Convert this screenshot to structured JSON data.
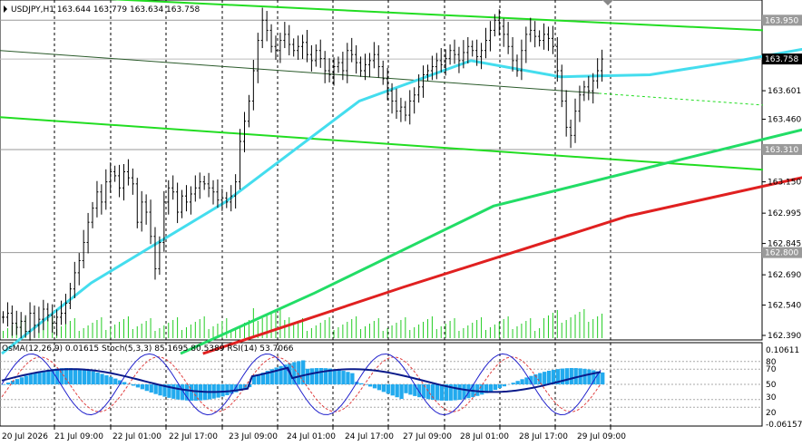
{
  "chart_data": {
    "type": "line",
    "title": "USDJPY,H1  163.644 163.779 163.634 163.758",
    "x_labels": [
      "20 Jul 2026",
      "21 Jul 09:00",
      "22 Jul 01:00",
      "22 Jul 17:00",
      "23 Jul 09:00",
      "24 Jul 01:00",
      "24 Jul 17:00",
      "27 Jul 09:00",
      "28 Jul 01:00",
      "28 Jul 17:00",
      "29 Jul 09:00"
    ],
    "price_axis": {
      "ylim": [
        162.39,
        164.05
      ],
      "ticks": [
        "163.950",
        "163.758",
        "163.601",
        "163.460",
        "163.310",
        "163.150",
        "162.995",
        "162.845",
        "162.800",
        "162.690",
        "162.540",
        "162.390"
      ],
      "boxed": [
        {
          "value": 163.95,
          "label": "163.950",
          "style": "grey"
        },
        {
          "value": 163.758,
          "label": "163.758",
          "style": "black"
        },
        {
          "value": 163.31,
          "label": "163.310",
          "style": "grey"
        },
        {
          "value": 162.8,
          "label": "162.800",
          "style": "grey"
        }
      ]
    },
    "price_series": {
      "close": [
        162.48,
        162.5,
        162.45,
        162.43,
        162.46,
        162.41,
        162.5,
        162.44,
        162.47,
        162.52,
        162.49,
        162.45,
        162.48,
        162.5,
        162.55,
        162.62,
        162.7,
        162.76,
        162.85,
        162.95,
        163.02,
        163.1,
        163.05,
        163.15,
        163.2,
        163.18,
        163.12,
        163.2,
        163.17,
        163.14,
        162.95,
        163.05,
        163.0,
        162.88,
        162.72,
        162.85,
        163.05,
        163.12,
        163.1,
        163.0,
        163.08,
        163.05,
        163.09,
        163.12,
        163.15,
        163.14,
        163.12,
        163.1,
        163.06,
        163.07,
        163.05,
        163.08,
        163.15,
        163.35,
        163.45,
        163.55,
        163.7,
        163.85,
        163.95,
        163.9,
        163.82,
        163.8,
        163.85,
        163.88,
        163.83,
        163.8,
        163.82,
        163.84,
        163.78,
        163.75,
        163.8,
        163.76,
        163.7,
        163.68,
        163.72,
        163.74,
        163.7,
        163.8,
        163.78,
        163.74,
        163.7,
        163.73,
        163.75,
        163.78,
        163.72,
        163.66,
        163.6,
        163.55,
        163.5,
        163.52,
        163.48,
        163.55,
        163.58,
        163.62,
        163.68,
        163.7,
        163.72,
        163.75,
        163.73,
        163.76,
        163.8,
        163.78,
        163.75,
        163.79,
        163.82,
        163.8,
        163.77,
        163.8,
        163.85,
        163.9,
        163.95,
        163.92,
        163.88,
        163.82,
        163.75,
        163.7,
        163.8,
        163.88,
        163.9,
        163.87,
        163.85,
        163.88,
        163.86,
        163.82,
        163.7,
        163.55,
        163.42,
        163.38,
        163.5,
        163.58,
        163.62,
        163.6,
        163.65,
        163.7,
        163.758
      ],
      "ema_cyan": [
        [
          0,
          162.3
        ],
        [
          20,
          162.65
        ],
        [
          50,
          163.05
        ],
        [
          80,
          163.55
        ],
        [
          105,
          163.75
        ],
        [
          125,
          163.67
        ],
        [
          145,
          163.68
        ],
        [
          165,
          163.75
        ],
        [
          185,
          163.83
        ],
        [
          200,
          163.78
        ],
        [
          230,
          163.7
        ]
      ],
      "ema_green": [
        [
          40,
          162.3
        ],
        [
          70,
          162.6
        ],
        [
          110,
          163.03
        ],
        [
          150,
          163.25
        ],
        [
          185,
          163.44
        ],
        [
          210,
          163.45
        ],
        [
          230,
          163.48
        ]
      ],
      "ema_red": [
        [
          45,
          162.3
        ],
        [
          90,
          162.63
        ],
        [
          140,
          162.98
        ],
        [
          185,
          163.2
        ],
        [
          230,
          163.31
        ]
      ],
      "channel_top": {
        "from": [
          0,
          164.08
        ],
        "to": [
          290,
          163.9
        ]
      },
      "channel_mid": {
        "from": [
          0,
          163.8
        ],
        "to": [
          290,
          163.53
        ]
      },
      "channel_bot": {
        "from": [
          0,
          163.47
        ],
        "to": [
          290,
          163.21
        ]
      }
    },
    "indicator_panel": {
      "label": "OsMA(12,26,9) 0.01615  Stoch(5,3,3) 85.1695 80.5389  RSI(14) 53.7066",
      "ticks": [
        "0.10611",
        "80",
        "70",
        "50",
        "30",
        "20",
        "-0.06157"
      ],
      "stoch_levels": [
        80,
        70,
        50,
        30,
        20
      ]
    }
  }
}
